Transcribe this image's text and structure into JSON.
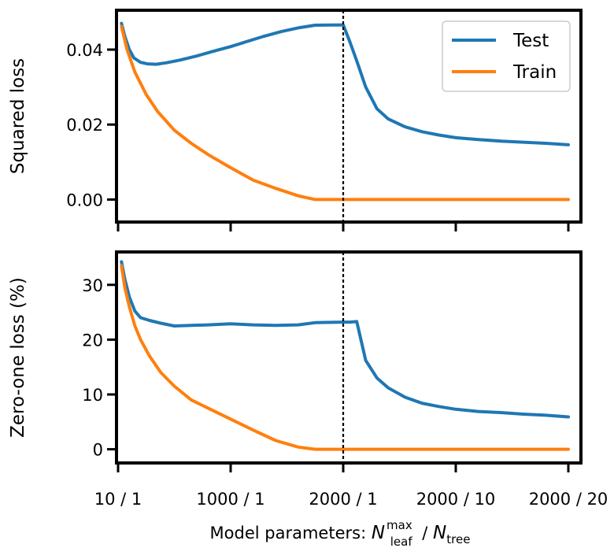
{
  "chart_data": [
    {
      "type": "line",
      "ylabel": "Squared loss",
      "ylim": [
        -0.006,
        0.0505
      ],
      "yticks": [
        0.0,
        0.02,
        0.04
      ],
      "ytick_labels": [
        "0.00",
        "0.02",
        "0.04"
      ],
      "x_domain": [
        0,
        4
      ],
      "legend": {
        "placement": "top-right",
        "entries": [
          "Test",
          "Train"
        ]
      },
      "series": [
        {
          "name": "Test",
          "color": "#1f77b4",
          "x": [
            0.03,
            0.06,
            0.1,
            0.14,
            0.2,
            0.26,
            0.34,
            0.43,
            0.55,
            0.7,
            0.85,
            1.0,
            1.15,
            1.3,
            1.45,
            1.6,
            1.75,
            2.0,
            2.06,
            2.12,
            2.2,
            2.3,
            2.4,
            2.55,
            2.7,
            2.85,
            3.0,
            3.2,
            3.4,
            3.6,
            3.8,
            4.0
          ],
          "y": [
            0.047,
            0.0435,
            0.04,
            0.0378,
            0.0366,
            0.0362,
            0.0361,
            0.0365,
            0.0372,
            0.0383,
            0.0396,
            0.0408,
            0.0422,
            0.0436,
            0.0448,
            0.0458,
            0.0465,
            0.0466,
            0.042,
            0.037,
            0.03,
            0.0242,
            0.0215,
            0.0194,
            0.0181,
            0.0172,
            0.0165,
            0.016,
            0.0156,
            0.0153,
            0.015,
            0.0146
          ]
        },
        {
          "name": "Train",
          "color": "#ff7f0e",
          "x": [
            0.03,
            0.08,
            0.15,
            0.25,
            0.35,
            0.5,
            0.65,
            0.8,
            1.0,
            1.2,
            1.4,
            1.6,
            1.75,
            2.0,
            2.5,
            3.0,
            3.5,
            4.0
          ],
          "y": [
            0.0462,
            0.04,
            0.034,
            0.028,
            0.0235,
            0.0185,
            0.015,
            0.012,
            0.0085,
            0.0052,
            0.003,
            0.001,
            0.0,
            0.0,
            0.0,
            0.0,
            0.0,
            0.0
          ]
        }
      ]
    },
    {
      "type": "line",
      "ylabel": "Zero-one loss (%)",
      "ylim": [
        -2.5,
        36
      ],
      "yticks": [
        0,
        10,
        20,
        30
      ],
      "ytick_labels": [
        "0",
        "10",
        "20",
        "30"
      ],
      "x_domain": [
        0,
        4
      ],
      "xtick_positions": [
        0,
        1,
        2,
        3,
        4
      ],
      "xtick_labels": [
        "10 / 1",
        "1000 / 1",
        "2000 / 1",
        "2000 / 10",
        "2000 / 20"
      ],
      "xlabel": {
        "prefix": "Model parameters: ",
        "num_symbol": "N",
        "num_sub": "leaf",
        "num_sup": "max",
        "separator": "/",
        "den_symbol": "N",
        "den_sub": "tree"
      },
      "series": [
        {
          "name": "Test",
          "color": "#1f77b4",
          "x": [
            0.03,
            0.06,
            0.1,
            0.15,
            0.2,
            0.28,
            0.38,
            0.5,
            0.65,
            0.8,
            1.0,
            1.2,
            1.4,
            1.6,
            1.75,
            2.0,
            2.06,
            2.12,
            2.2,
            2.3,
            2.4,
            2.55,
            2.7,
            2.85,
            3.0,
            3.2,
            3.4,
            3.6,
            3.8,
            4.0
          ],
          "y": [
            34.2,
            31.0,
            27.8,
            25.2,
            24.0,
            23.5,
            23.0,
            22.5,
            22.6,
            22.7,
            22.9,
            22.7,
            22.6,
            22.7,
            23.1,
            23.2,
            23.2,
            23.3,
            16.2,
            13.0,
            11.2,
            9.5,
            8.4,
            7.8,
            7.3,
            6.9,
            6.7,
            6.4,
            6.2,
            5.9
          ]
        },
        {
          "name": "Train",
          "color": "#ff7f0e",
          "x": [
            0.03,
            0.06,
            0.1,
            0.15,
            0.2,
            0.28,
            0.38,
            0.5,
            0.65,
            0.8,
            1.0,
            1.2,
            1.4,
            1.6,
            1.75,
            2.0,
            2.5,
            3.0,
            3.5,
            4.0
          ],
          "y": [
            33.5,
            29.5,
            26.0,
            22.5,
            20.0,
            17.0,
            14.0,
            11.5,
            9.0,
            7.5,
            5.5,
            3.5,
            1.6,
            0.4,
            0.0,
            0.0,
            0.0,
            0.0,
            0.0,
            0.0
          ]
        }
      ]
    }
  ]
}
